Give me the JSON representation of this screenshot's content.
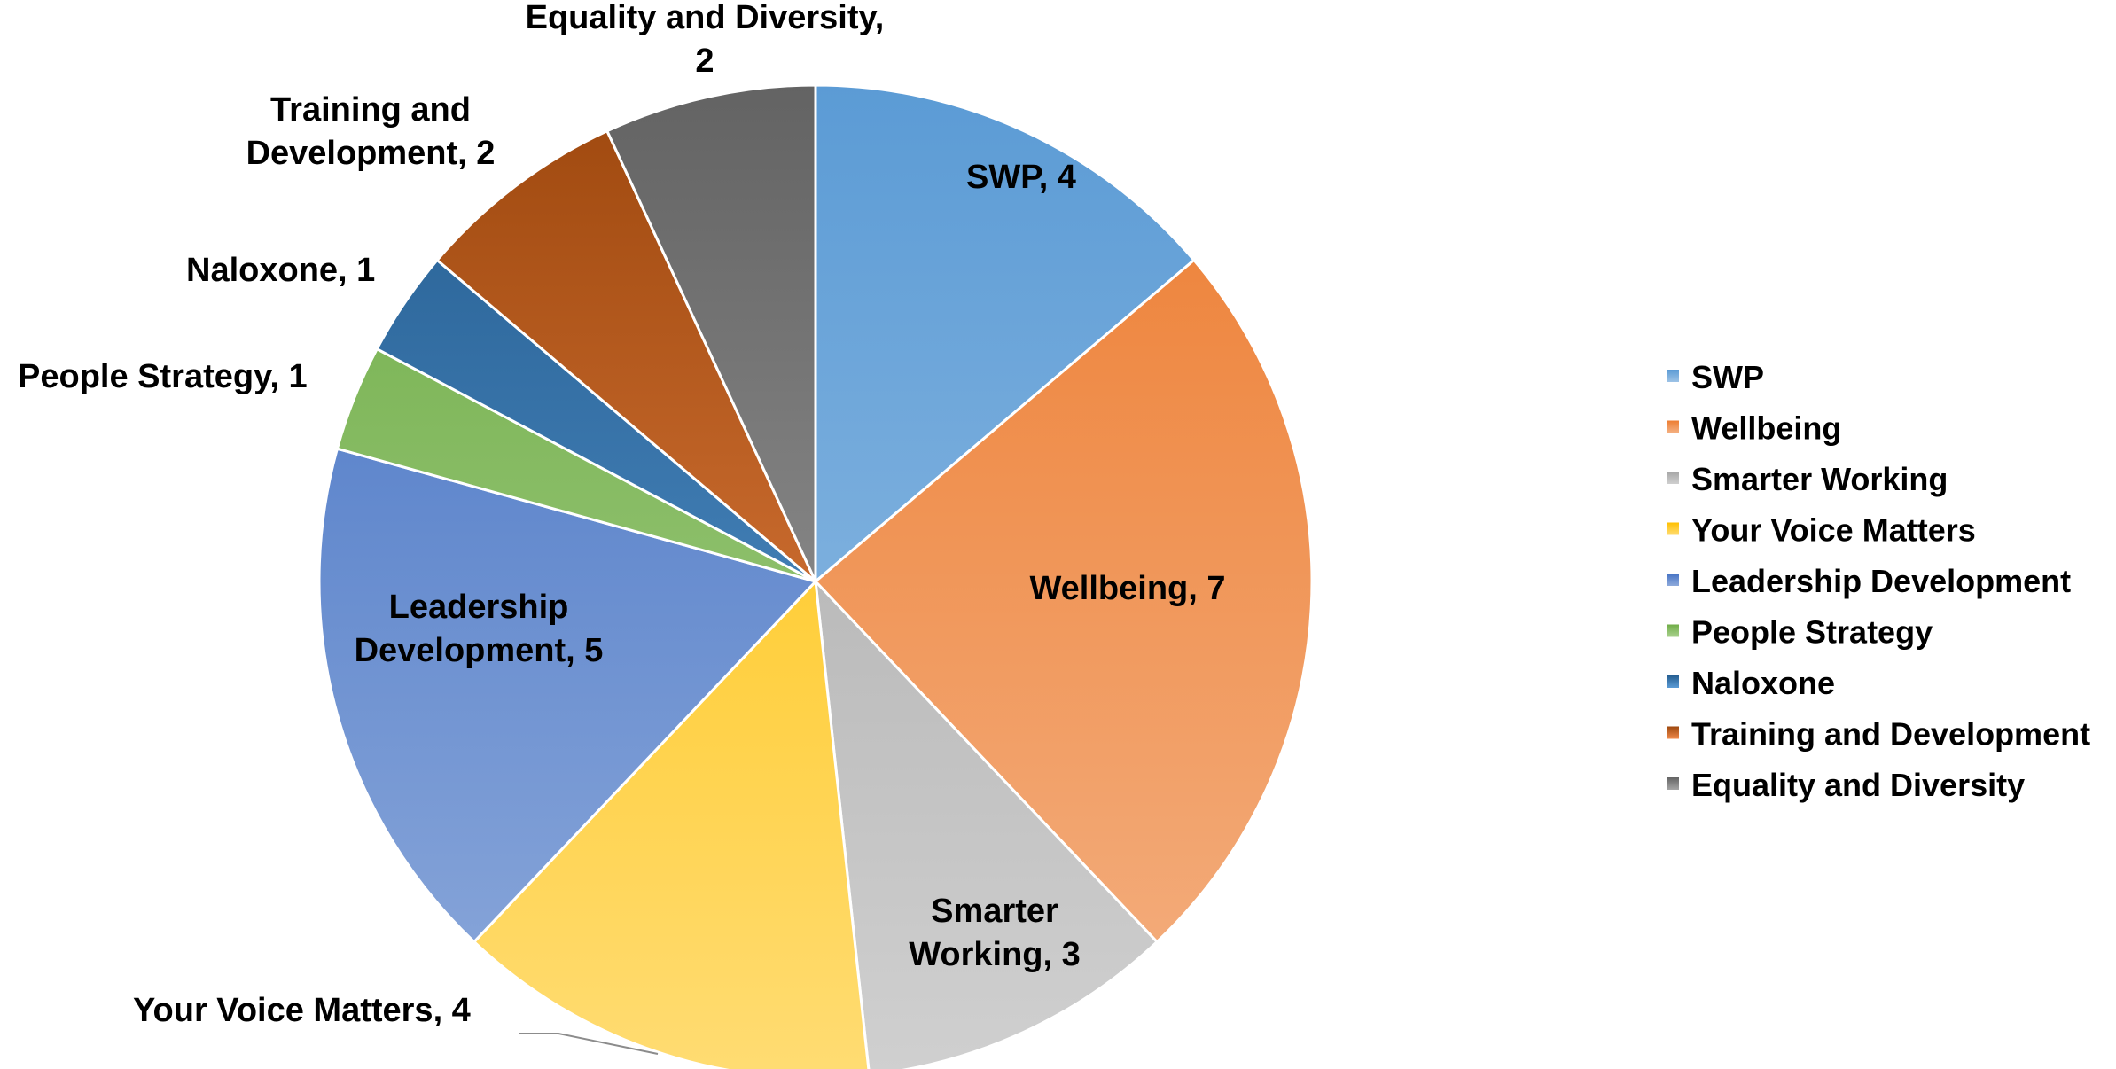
{
  "chart_data": {
    "type": "pie",
    "title": "",
    "legend_position": "right",
    "slices": [
      {
        "label": "SWP",
        "value": 4,
        "color": "#5b9bd5",
        "color_light": "#9dc3e6",
        "data_label": [
          "SWP, 4"
        ]
      },
      {
        "label": "Wellbeing",
        "value": 7,
        "color": "#ed7d31",
        "color_light": "#f4b183",
        "data_label": [
          "Wellbeing, 7"
        ]
      },
      {
        "label": "Smarter Working",
        "value": 3,
        "color": "#a5a5a5",
        "color_light": "#d0d0d0",
        "data_label": [
          "Smarter",
          "Working, 3"
        ]
      },
      {
        "label": "Your Voice Matters",
        "value": 4,
        "color": "#ffc000",
        "color_light": "#ffdc73",
        "data_label": [
          "Your Voice Matters, 4"
        ]
      },
      {
        "label": "Leadership Development",
        "value": 5,
        "color": "#4472c4",
        "color_light": "#8eaadb",
        "data_label": [
          "Leadership",
          "Development, 5"
        ]
      },
      {
        "label": "People Strategy",
        "value": 1,
        "color": "#70ad47",
        "color_light": "#a9d18e",
        "data_label": [
          "People Strategy, 1"
        ]
      },
      {
        "label": "Naloxone",
        "value": 1,
        "color": "#255e91",
        "color_light": "#5b9bd5",
        "data_label": [
          "Naloxone, 1"
        ]
      },
      {
        "label": "Training and Development",
        "value": 2,
        "color": "#9e480e",
        "color_light": "#f08a4b",
        "data_label": [
          "Training and",
          "Development, 2"
        ]
      },
      {
        "label": "Equality and Diversity",
        "value": 2,
        "color": "#636363",
        "color_light": "#a5a5a5",
        "data_label": [
          "Equality and Diversity,",
          "2"
        ]
      }
    ]
  }
}
